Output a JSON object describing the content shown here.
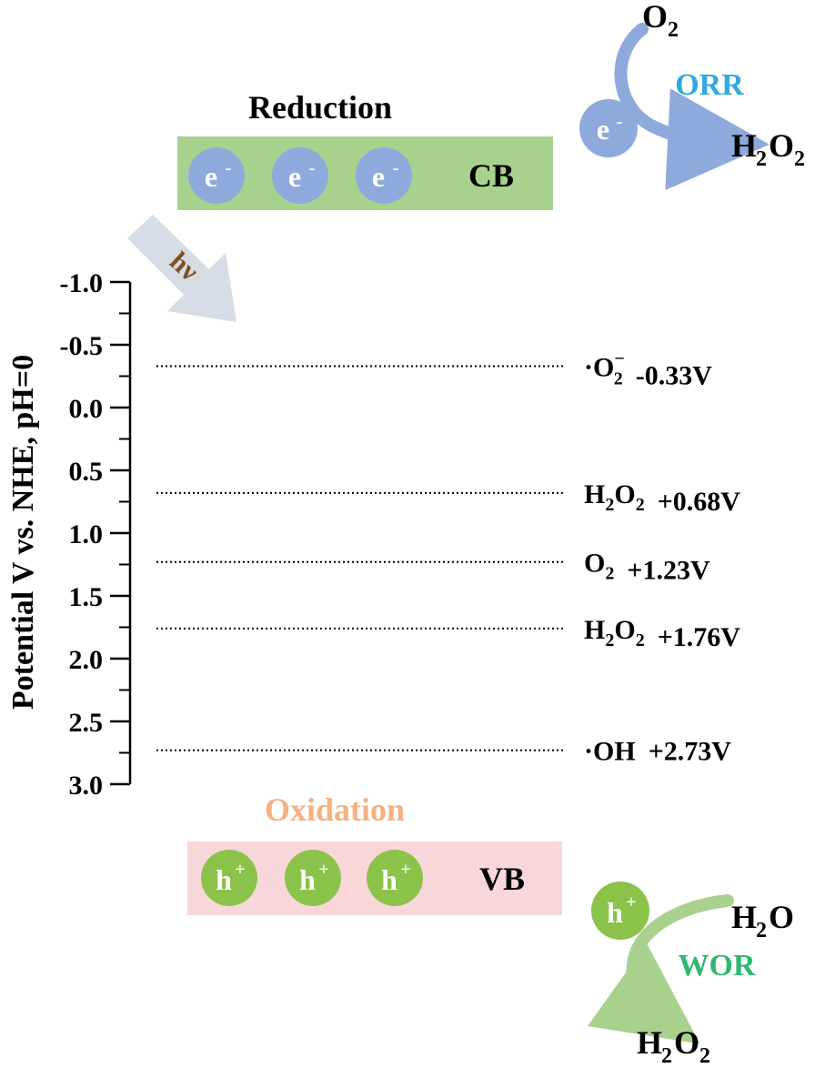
{
  "axis": {
    "label": "Potential V vs. NHE, pH=0",
    "ticks": [
      "-1.0",
      "-0.5",
      "0.0",
      "0.5",
      "1.0",
      "1.5",
      "2.0",
      "2.5",
      "3.0"
    ]
  },
  "reduction": {
    "title": "Reduction",
    "band": "CB",
    "particle": "e",
    "particle_sup": "-",
    "title_color": "#000000",
    "band_color": "#a9d18e",
    "particle_color": "#8ea9db"
  },
  "oxidation": {
    "title": "Oxidation",
    "band": "VB",
    "particle": "h",
    "particle_sup": "+",
    "title_color": "#f4b183",
    "band_color": "#f8d7da",
    "particle_color": "#8bc34a"
  },
  "light": {
    "label": "hν",
    "arrow_color": "#d6dce4",
    "label_color": "#7f4f1f"
  },
  "levels": [
    {
      "species": "·O",
      "sub": "2",
      "sup": "−",
      "potential": -0.33,
      "value_label": "-0.33V"
    },
    {
      "species": "H",
      "sub": "2",
      "mid": "O",
      "sub2": "2",
      "potential": 0.68,
      "value_label": "+0.68V"
    },
    {
      "species": "O",
      "sub": "2",
      "potential": 1.23,
      "value_label": "+1.23V"
    },
    {
      "species": "H",
      "sub": "2",
      "mid": "O",
      "sub2": "2",
      "potential": 1.76,
      "value_label": "+1.76V"
    },
    {
      "species": "·OH",
      "potential": 2.73,
      "value_label": "+2.73V"
    }
  ],
  "orr": {
    "label": "ORR",
    "label_color": "#2eaadc",
    "arrow_color": "#8ea9db",
    "reactant": "O",
    "reactant_sub": "2",
    "product": "H",
    "product_sub": "2",
    "product_mid": "O",
    "product_sub2": "2",
    "particle": "e",
    "particle_sup": "-"
  },
  "wor": {
    "label": "WOR",
    "label_color": "#2eb872",
    "arrow_color": "#a9d18e",
    "reactant": "H",
    "reactant_sub": "2",
    "reactant_mid": "O",
    "product": "H",
    "product_sub": "2",
    "product_mid": "O",
    "product_sub2": "2",
    "particle": "h",
    "particle_sup": "+"
  }
}
